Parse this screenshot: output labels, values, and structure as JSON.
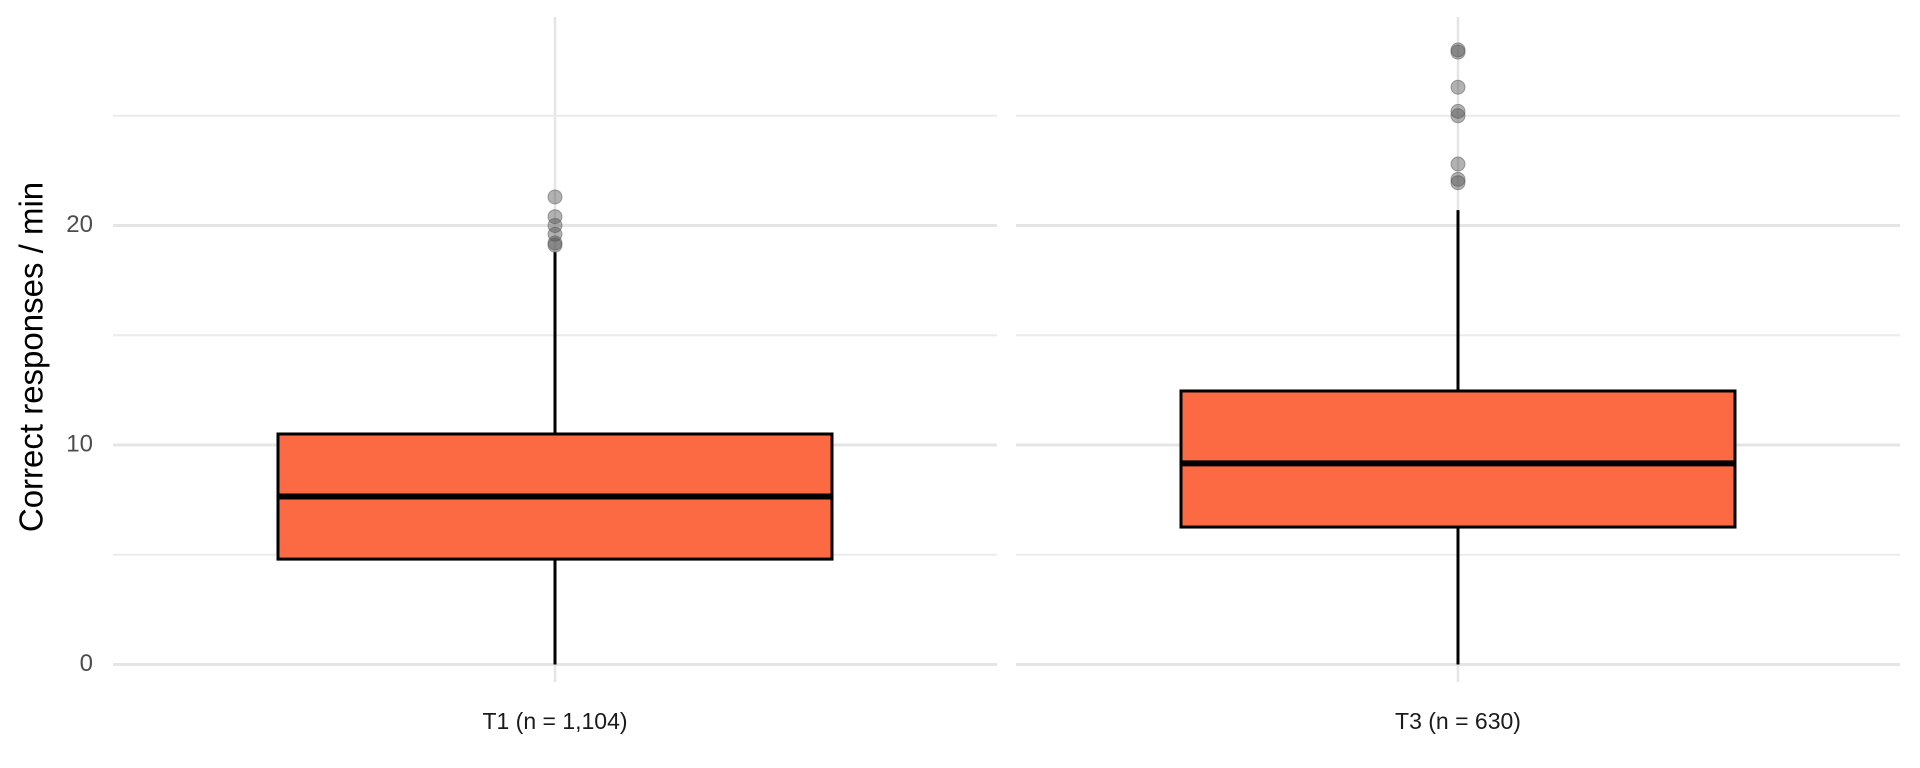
{
  "chart_data": {
    "type": "box",
    "y_label": "Correct responses / min",
    "ylim": [
      -0.8,
      29.5
    ],
    "yticks": [
      0,
      10,
      20
    ],
    "minor_yticks": [
      5,
      15,
      25
    ],
    "grid": true,
    "color": "#fb6a43",
    "outlier_color": "#555555",
    "categories": [
      "T1 (n = 1,104)",
      "T3 (n = 630)"
    ],
    "boxes": [
      {
        "whisker_low": 0,
        "q1": 4.8,
        "median": 7.65,
        "q3": 10.5,
        "whisker_high": 18.8,
        "outliers": [
          21.3,
          20.4,
          20.0,
          19.6,
          19.2,
          19.1
        ]
      },
      {
        "whisker_low": 0,
        "q1": 6.26,
        "median": 9.16,
        "q3": 12.46,
        "whisker_high": 20.7,
        "outliers": [
          28.0,
          27.9,
          26.3,
          25.2,
          25.0,
          22.8,
          22.1,
          21.95
        ]
      }
    ]
  }
}
